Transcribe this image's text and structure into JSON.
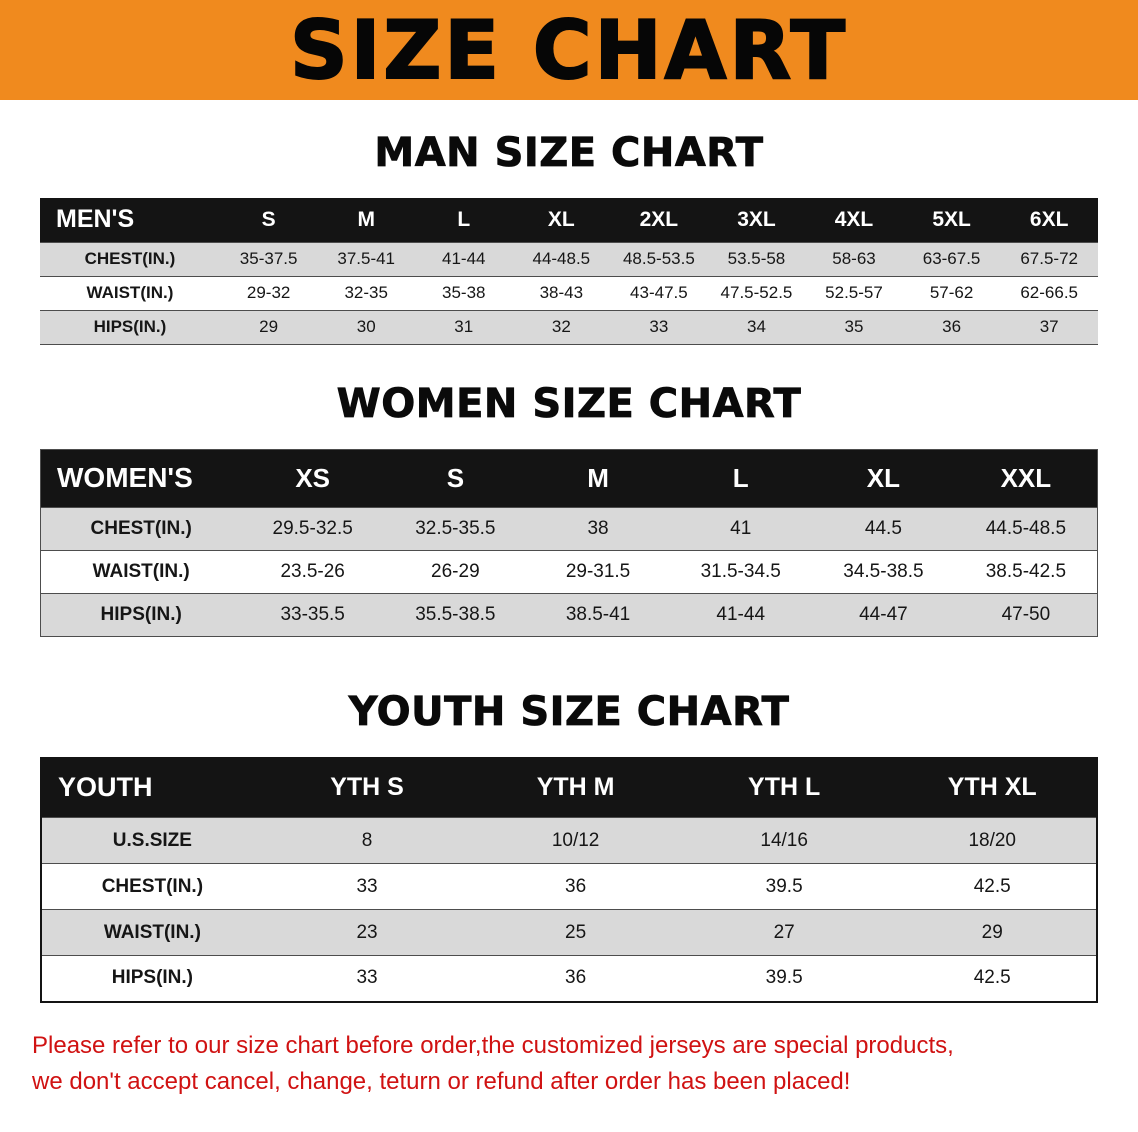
{
  "title": "SIZE CHART",
  "colors": {
    "banner_bg": "#f08a1e",
    "table_header_bg": "#141414",
    "stripe_bg": "#d9d9d9",
    "disclaimer_text": "#d01212"
  },
  "men": {
    "heading": "MAN SIZE CHART",
    "columns": [
      "MEN'S",
      "S",
      "M",
      "L",
      "XL",
      "2XL",
      "3XL",
      "4XL",
      "5XL",
      "6XL"
    ],
    "rows": [
      {
        "label": "CHEST(IN.)",
        "values": [
          "35-37.5",
          "37.5-41",
          "41-44",
          "44-48.5",
          "48.5-53.5",
          "53.5-58",
          "58-63",
          "63-67.5",
          "67.5-72"
        ]
      },
      {
        "label": "WAIST(IN.)",
        "values": [
          "29-32",
          "32-35",
          "35-38",
          "38-43",
          "43-47.5",
          "47.5-52.5",
          "52.5-57",
          "57-62",
          "62-66.5"
        ]
      },
      {
        "label": "HIPS(IN.)",
        "values": [
          "29",
          "30",
          "31",
          "32",
          "33",
          "34",
          "35",
          "36",
          "37"
        ]
      }
    ]
  },
  "women": {
    "heading": "WOMEN SIZE CHART",
    "columns": [
      "WOMEN'S",
      "XS",
      "S",
      "M",
      "L",
      "XL",
      "XXL"
    ],
    "rows": [
      {
        "label": "CHEST(IN.)",
        "values": [
          "29.5-32.5",
          "32.5-35.5",
          "38",
          "41",
          "44.5",
          "44.5-48.5"
        ]
      },
      {
        "label": "WAIST(IN.)",
        "values": [
          "23.5-26",
          "26-29",
          "29-31.5",
          "31.5-34.5",
          "34.5-38.5",
          "38.5-42.5"
        ]
      },
      {
        "label": "HIPS(IN.)",
        "values": [
          "33-35.5",
          "35.5-38.5",
          "38.5-41",
          "41-44",
          "44-47",
          "47-50"
        ]
      }
    ]
  },
  "youth": {
    "heading": "YOUTH SIZE CHART",
    "columns": [
      "YOUTH",
      "YTH S",
      "YTH M",
      "YTH L",
      "YTH XL"
    ],
    "rows": [
      {
        "label": "U.S.SIZE",
        "values": [
          "8",
          "10/12",
          "14/16",
          "18/20"
        ]
      },
      {
        "label": "CHEST(IN.)",
        "values": [
          "33",
          "36",
          "39.5",
          "42.5"
        ]
      },
      {
        "label": "WAIST(IN.)",
        "values": [
          "23",
          "25",
          "27",
          "29"
        ]
      },
      {
        "label": "HIPS(IN.)",
        "values": [
          "33",
          "36",
          "39.5",
          "42.5"
        ]
      }
    ]
  },
  "footer": {
    "line1": "Please refer to our size chart before order,the customized jerseys are special products,",
    "line2": "we don't accept cancel, change, teturn or refund after order has been placed!"
  }
}
